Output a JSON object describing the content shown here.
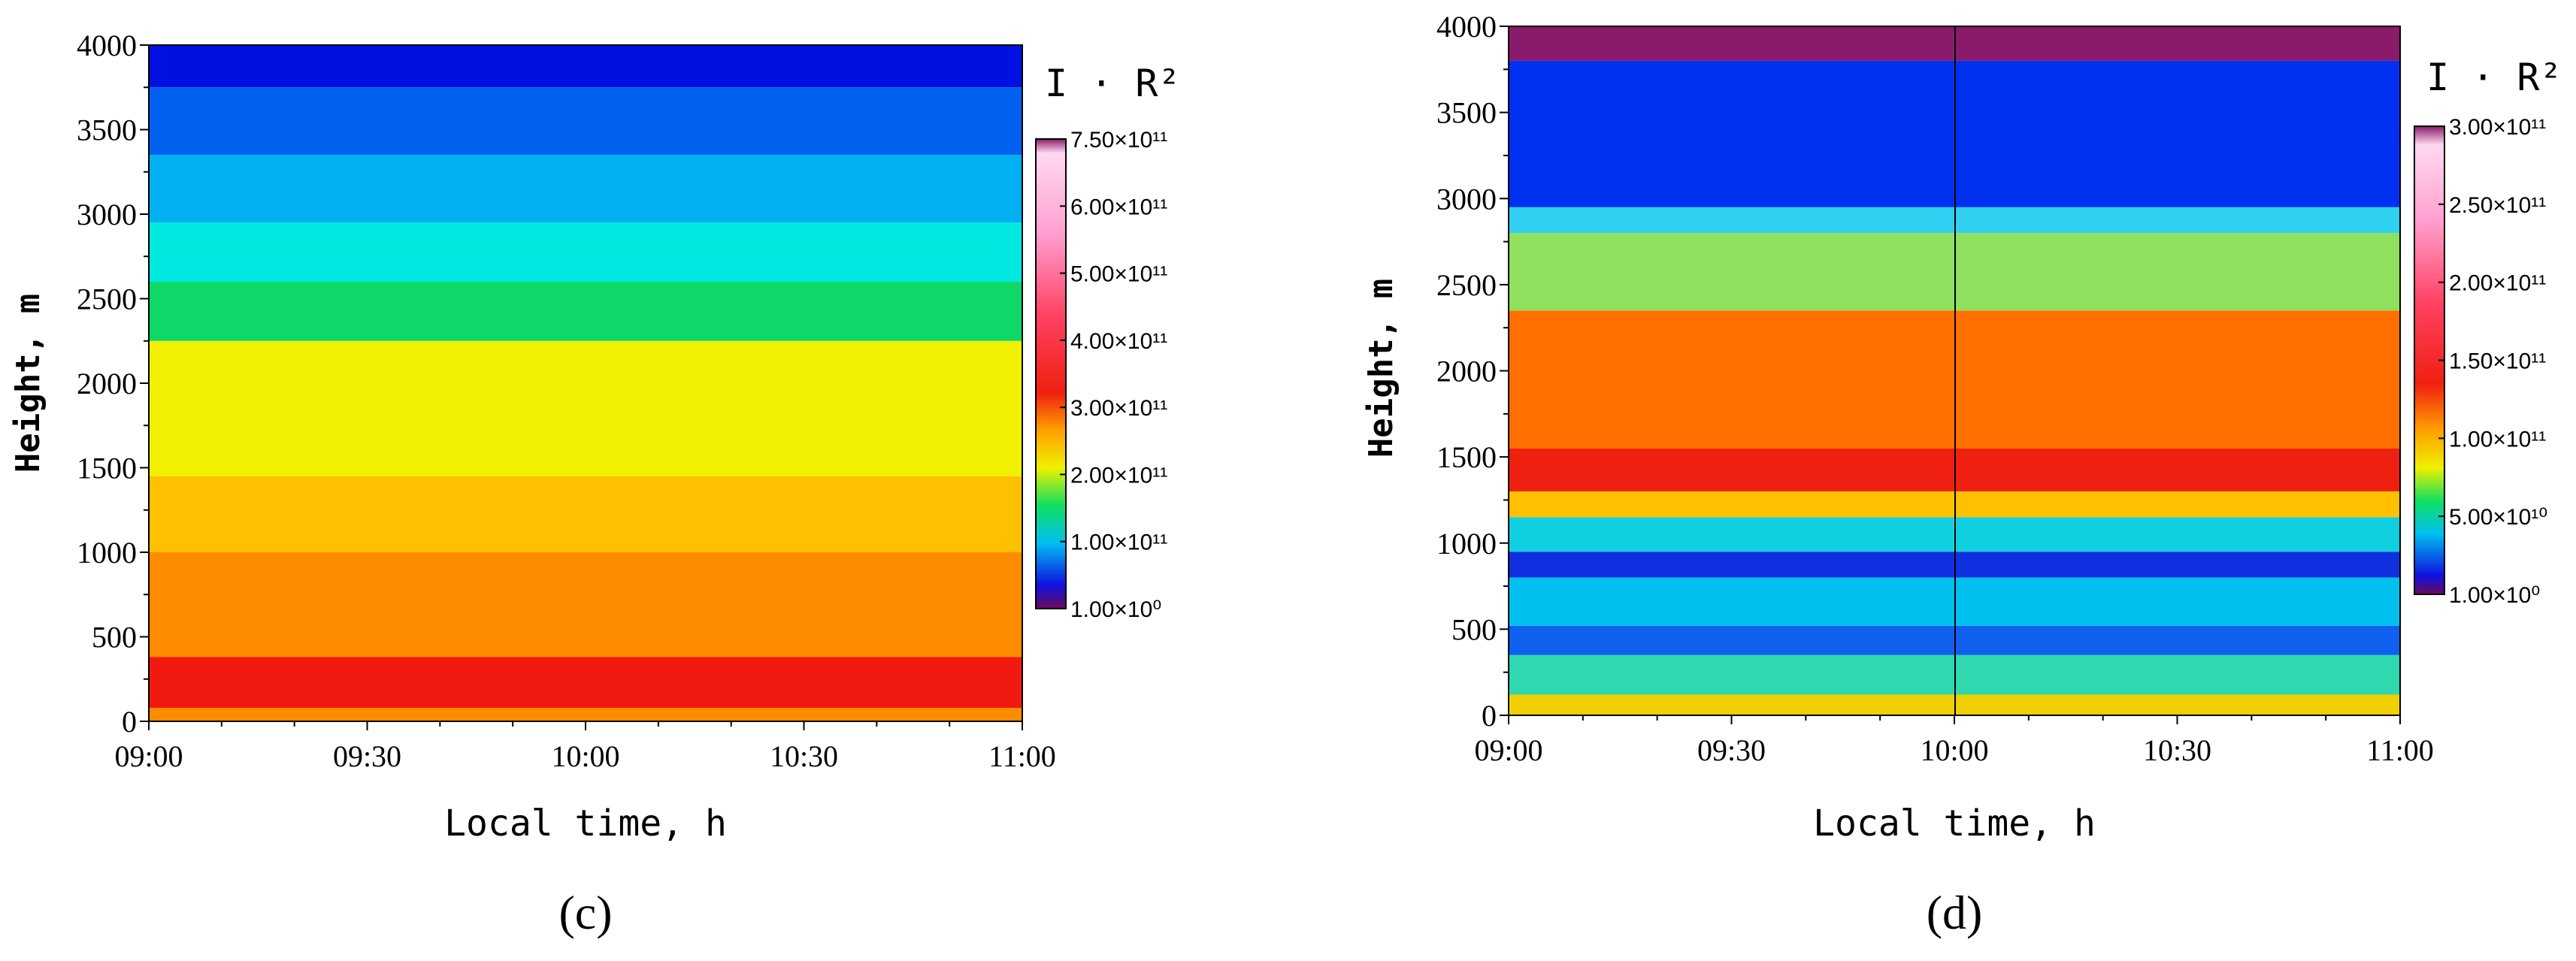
{
  "chart_data": [
    {
      "type": "heatmap",
      "panel_label": "(c)",
      "xlabel": "Local time, h",
      "ylabel": "Height, m",
      "colorbar_title": "I · R²",
      "x_ticks": [
        "09:00",
        "09:30",
        "10:00",
        "10:30",
        "11:00"
      ],
      "xlim": [
        "09:00",
        "11:00"
      ],
      "y_ticks": [
        0,
        500,
        1000,
        1500,
        2000,
        2500,
        3000,
        3500,
        4000
      ],
      "ylim": [
        0,
        4000
      ],
      "colorbar_ticks": [
        "7.50×10¹¹",
        "6.00×10¹¹",
        "5.00×10¹¹",
        "4.00×10¹¹",
        "3.00×10¹¹",
        "2.00×10¹¹",
        "1.00×10¹¹",
        "1.00×10⁰"
      ],
      "colorbar_values": [
        750000000000.0,
        600000000000.0,
        500000000000.0,
        400000000000.0,
        300000000000.0,
        200000000000.0,
        100000000000.0,
        1.0
      ],
      "layers": [
        {
          "from": 0,
          "to": 80,
          "color": "#ff8c00"
        },
        {
          "from": 80,
          "to": 380,
          "color": "#f21a10"
        },
        {
          "from": 380,
          "to": 1000,
          "color": "#ff8c00"
        },
        {
          "from": 1000,
          "to": 1450,
          "color": "#ffc000"
        },
        {
          "from": 1450,
          "to": 2250,
          "color": "#f0f000"
        },
        {
          "from": 2250,
          "to": 2600,
          "color": "#10d868"
        },
        {
          "from": 2600,
          "to": 2950,
          "color": "#00e8e0"
        },
        {
          "from": 2950,
          "to": 3350,
          "color": "#00b0f0"
        },
        {
          "from": 3350,
          "to": 3750,
          "color": "#0060f0"
        },
        {
          "from": 3750,
          "to": 4000,
          "color": "#0010e0"
        }
      ]
    },
    {
      "type": "heatmap",
      "panel_label": "(d)",
      "xlabel": "Local time, h",
      "ylabel": "Height, m",
      "colorbar_title": "I · R²",
      "x_ticks": [
        "09:00",
        "09:30",
        "10:00",
        "10:30",
        "11:00"
      ],
      "xlim": [
        "09:00",
        "11:00"
      ],
      "y_ticks": [
        0,
        500,
        1000,
        1500,
        2000,
        2500,
        3000,
        3500,
        4000
      ],
      "ylim": [
        0,
        4000
      ],
      "colorbar_ticks": [
        "3.00×10¹¹",
        "2.50×10¹¹",
        "2.00×10¹¹",
        "1.50×10¹¹",
        "1.00×10¹¹",
        "5.00×10¹⁰",
        "1.00×10⁰"
      ],
      "colorbar_values": [
        300000000000.0,
        250000000000.0,
        200000000000.0,
        150000000000.0,
        100000000000.0,
        50000000000.0,
        1.0
      ],
      "layers": [
        {
          "from": 0,
          "to": 120,
          "color": "#f0d000"
        },
        {
          "from": 120,
          "to": 350,
          "color": "#30d8b0"
        },
        {
          "from": 350,
          "to": 520,
          "color": "#1060f0"
        },
        {
          "from": 520,
          "to": 800,
          "color": "#00c0f0"
        },
        {
          "from": 800,
          "to": 950,
          "color": "#1030e0"
        },
        {
          "from": 950,
          "to": 1150,
          "color": "#10d0e0"
        },
        {
          "from": 1150,
          "to": 1300,
          "color": "#ffc000"
        },
        {
          "from": 1300,
          "to": 1550,
          "color": "#f02010"
        },
        {
          "from": 1550,
          "to": 2350,
          "color": "#ff7000"
        },
        {
          "from": 2350,
          "to": 2800,
          "color": "#90e060"
        },
        {
          "from": 2800,
          "to": 2950,
          "color": "#30d0f0"
        },
        {
          "from": 2950,
          "to": 3800,
          "color": "#0030f0"
        },
        {
          "from": 3800,
          "to": 4000,
          "color": "#8a1a6a"
        }
      ]
    }
  ]
}
